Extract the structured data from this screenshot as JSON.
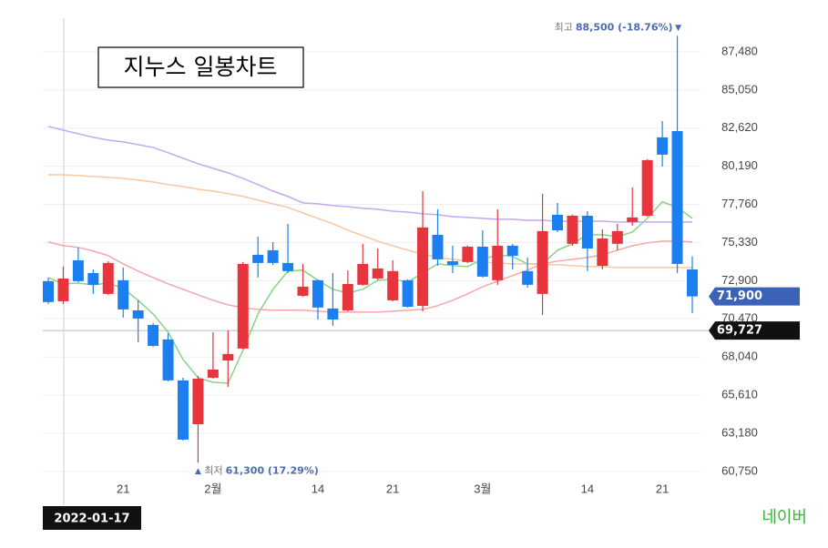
{
  "chart_data": {
    "type": "candlestick",
    "title": "지누스 일봉차트",
    "source": "네이버",
    "crosshair_label": "2022-01-17",
    "categories": [
      null,
      null,
      null,
      null,
      null,
      "21",
      null,
      null,
      null,
      null,
      null,
      "2월",
      null,
      null,
      null,
      null,
      null,
      null,
      "14",
      null,
      null,
      null,
      null,
      "21",
      null,
      null,
      null,
      null,
      null,
      "3월",
      null,
      null,
      null,
      null,
      null,
      null,
      "14",
      null,
      null,
      null,
      null,
      "21",
      null,
      null
    ],
    "open": [
      72870,
      71590,
      74200,
      73390,
      72060,
      72930,
      71010,
      70080,
      69160,
      66550,
      63760,
      66720,
      67820,
      68580,
      74550,
      74840,
      74030,
      71940,
      72930,
      71130,
      71010,
      72640,
      73040,
      71650,
      72930,
      71300,
      75820,
      74140,
      74090,
      75070,
      72930,
      75130,
      73510,
      72060,
      77100,
      75250,
      77040,
      73850,
      75250,
      76640,
      77040,
      82030,
      82430,
      73620
    ],
    "high": [
      73100,
      73800,
      75010,
      73620,
      74140,
      73740,
      71650,
      70200,
      69560,
      66720,
      66840,
      69620,
      69740,
      74090,
      75710,
      75360,
      76520,
      73970,
      72980,
      73390,
      73560,
      75250,
      74950,
      74200,
      72990,
      78610,
      77450,
      75130,
      75130,
      76110,
      77450,
      75250,
      74380,
      78430,
      77850,
      77100,
      77330,
      76170,
      76520,
      78840,
      80640,
      83070,
      88500,
      74440
    ],
    "low": [
      71420,
      71420,
      72810,
      72060,
      72000,
      70550,
      68980,
      68690,
      66490,
      62720,
      61300,
      66660,
      66140,
      68520,
      73100,
      73910,
      73390,
      71880,
      70430,
      70030,
      70950,
      72580,
      72930,
      71590,
      71190,
      70950,
      73850,
      73390,
      74030,
      73100,
      72640,
      73620,
      72460,
      70720,
      76000,
      75130,
      73510,
      73620,
      74840,
      76410,
      76990,
      80170,
      73390,
      70840
    ],
    "close": [
      71540,
      73040,
      72870,
      72640,
      74030,
      71070,
      70490,
      68750,
      66550,
      62780,
      66660,
      67240,
      68230,
      73970,
      74030,
      74030,
      73510,
      72520,
      71190,
      70430,
      72690,
      73970,
      73680,
      73510,
      71240,
      76290,
      74260,
      73910,
      75070,
      73160,
      75130,
      74490,
      72640,
      76060,
      76110,
      77040,
      74950,
      75590,
      76060,
      76930,
      80580,
      80930,
      73970,
      71900
    ],
    "up_color": "#e8343c",
    "down_color": "#1b7ff2",
    "moving_averages": [
      {
        "color": "#86d486",
        "values": [
          73100,
          72700,
          72750,
          72640,
          72750,
          72410,
          71650,
          70780,
          69620,
          67880,
          66720,
          66430,
          66380,
          68460,
          70780,
          72350,
          73510,
          73570,
          72930,
          72350,
          72120,
          72350,
          72930,
          72990,
          72810,
          73390,
          73970,
          73860,
          73800,
          74260,
          74550,
          74440,
          73970,
          73970,
          74840,
          75250,
          75830,
          75830,
          75710,
          76000,
          76870,
          77920,
          77570,
          76870
        ]
      },
      {
        "color": "#f7a6a8",
        "values": [
          75370,
          75130,
          75020,
          74790,
          74500,
          73970,
          73510,
          73100,
          72700,
          72350,
          72000,
          71650,
          71360,
          71190,
          71070,
          71020,
          71020,
          71020,
          70960,
          70900,
          70900,
          70900,
          70900,
          70960,
          71020,
          71070,
          71310,
          71650,
          72060,
          72520,
          72870,
          73220,
          73570,
          73970,
          74150,
          74260,
          74380,
          74550,
          74840,
          75130,
          75310,
          75420,
          75420,
          75370
        ]
      },
      {
        "color": "#fbc6a0",
        "values": [
          79650,
          79650,
          79600,
          79540,
          79480,
          79420,
          79310,
          79190,
          79020,
          78900,
          78730,
          78610,
          78440,
          78270,
          78030,
          77800,
          77570,
          77220,
          76870,
          76530,
          76120,
          75770,
          75420,
          75130,
          74840,
          74610,
          74380,
          74260,
          74150,
          74090,
          74030,
          73970,
          73970,
          73920,
          73920,
          73860,
          73800,
          73800,
          73740,
          73740,
          73740,
          73740,
          73740,
          73740
        ]
      },
      {
        "color": "#c3a8f3",
        "values": [
          82730,
          82490,
          82260,
          82030,
          81860,
          81740,
          81570,
          81390,
          81050,
          80700,
          80350,
          80060,
          79770,
          79420,
          79020,
          78610,
          78270,
          77860,
          77800,
          77680,
          77620,
          77510,
          77450,
          77330,
          77270,
          77160,
          77100,
          76980,
          76930,
          76870,
          76810,
          76810,
          76750,
          76750,
          76690,
          76690,
          76690,
          76690,
          76640,
          76640,
          76640,
          76640,
          76640,
          76640
        ]
      }
    ],
    "ylim": [
      59470,
      89620
    ],
    "yticks": [
      {
        "value": 60750,
        "label": "60,750"
      },
      {
        "value": 63180,
        "label": "63,180"
      },
      {
        "value": 65610,
        "label": "65,610"
      },
      {
        "value": 68040,
        "label": "68,040"
      },
      {
        "value": 70470,
        "label": "70,470"
      },
      {
        "value": 72900,
        "label": "72,900"
      },
      {
        "value": 75330,
        "label": "75,330"
      },
      {
        "value": 77760,
        "label": "77,760"
      },
      {
        "value": 80190,
        "label": "80,190"
      },
      {
        "value": 82620,
        "label": "82,620"
      },
      {
        "value": 85050,
        "label": "85,050"
      },
      {
        "value": 87480,
        "label": "87,480"
      }
    ],
    "grid": true,
    "high_annotation": {
      "label": "최고",
      "value": 88500,
      "text": "88,500 (-18.76%)"
    },
    "low_annotation": {
      "label": "최저",
      "value": 61300,
      "text": "61,300 (17.29%)"
    },
    "current_price": {
      "value": 71900,
      "label": "71,900"
    },
    "reference_line": {
      "value": 69727,
      "label": "69,727"
    }
  }
}
